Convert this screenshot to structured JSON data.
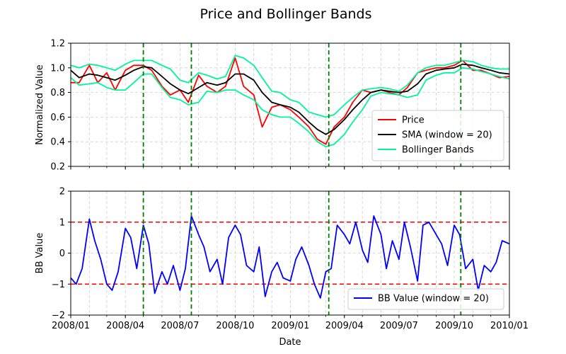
{
  "figure": {
    "title": "Price and Bollinger Bands"
  },
  "chart_data": [
    {
      "type": "line",
      "xlabel": "",
      "ylabel": "Normalized Value",
      "xlim": [
        "2008-01-01",
        "2010-01-01"
      ],
      "ylim": [
        0.2,
        1.2
      ],
      "yticks": [
        0.2,
        0.4,
        0.6,
        0.8,
        1.0,
        1.2
      ],
      "ytick_labels": [
        "0.2",
        "0.4",
        "0.6",
        "0.8",
        "1.0",
        "1.2"
      ],
      "grid": true,
      "legend_position": "lower-right",
      "vertical_markers": {
        "color": "#008000",
        "style": "dashed",
        "dates": [
          "2008-05-01",
          "2008-07-20",
          "2009-03-06",
          "2009-10-12"
        ]
      },
      "series": [
        {
          "name": "Price",
          "color": "#ff0000",
          "x": [
            "2008-01-01",
            "2008-01-15",
            "2008-02-01",
            "2008-02-15",
            "2008-03-01",
            "2008-03-15",
            "2008-04-01",
            "2008-04-15",
            "2008-05-01",
            "2008-05-15",
            "2008-06-01",
            "2008-06-15",
            "2008-07-01",
            "2008-07-15",
            "2008-08-01",
            "2008-08-15",
            "2008-09-01",
            "2008-09-15",
            "2008-10-01",
            "2008-10-15",
            "2008-11-01",
            "2008-11-15",
            "2008-12-01",
            "2008-12-15",
            "2009-01-01",
            "2009-01-15",
            "2009-02-01",
            "2009-02-15",
            "2009-03-01",
            "2009-03-15",
            "2009-04-01",
            "2009-04-15",
            "2009-05-01",
            "2009-05-15",
            "2009-06-01",
            "2009-06-15",
            "2009-07-01",
            "2009-07-15",
            "2009-08-01",
            "2009-08-15",
            "2009-09-01",
            "2009-09-15",
            "2009-10-01",
            "2009-10-15",
            "2009-11-01",
            "2009-11-15",
            "2009-12-01",
            "2009-12-15",
            "2010-01-01"
          ],
          "y": [
            0.88,
            0.88,
            1.02,
            0.88,
            0.96,
            0.82,
            0.98,
            1.02,
            1.02,
            0.98,
            0.85,
            0.78,
            0.82,
            0.72,
            0.94,
            0.85,
            0.8,
            0.85,
            1.08,
            0.85,
            0.78,
            0.52,
            0.68,
            0.7,
            0.66,
            0.6,
            0.52,
            0.42,
            0.38,
            0.52,
            0.6,
            0.72,
            0.82,
            0.8,
            0.82,
            0.8,
            0.78,
            0.84,
            0.96,
            0.98,
            1.0,
            1.0,
            1.02,
            1.06,
            0.98,
            0.98,
            0.95,
            0.92,
            0.93
          ]
        },
        {
          "name": "SMA (window = 20)",
          "color": "#000000",
          "x": [
            "2008-01-01",
            "2008-01-15",
            "2008-02-01",
            "2008-02-15",
            "2008-03-01",
            "2008-03-15",
            "2008-04-01",
            "2008-04-15",
            "2008-05-01",
            "2008-05-15",
            "2008-06-01",
            "2008-06-15",
            "2008-07-01",
            "2008-07-15",
            "2008-08-01",
            "2008-08-15",
            "2008-09-01",
            "2008-09-15",
            "2008-10-01",
            "2008-10-15",
            "2008-11-01",
            "2008-11-15",
            "2008-12-01",
            "2008-12-15",
            "2009-01-01",
            "2009-01-15",
            "2009-02-01",
            "2009-02-15",
            "2009-03-01",
            "2009-03-15",
            "2009-04-01",
            "2009-04-15",
            "2009-05-01",
            "2009-05-15",
            "2009-06-01",
            "2009-06-15",
            "2009-07-01",
            "2009-07-15",
            "2009-08-01",
            "2009-08-15",
            "2009-09-01",
            "2009-09-15",
            "2009-10-01",
            "2009-10-15",
            "2009-11-01",
            "2009-11-15",
            "2009-12-01",
            "2009-12-15",
            "2010-01-01"
          ],
          "y": [
            0.98,
            0.92,
            0.95,
            0.94,
            0.92,
            0.9,
            0.94,
            0.98,
            1.01,
            1.0,
            0.93,
            0.87,
            0.82,
            0.79,
            0.84,
            0.88,
            0.86,
            0.88,
            0.95,
            0.95,
            0.9,
            0.8,
            0.72,
            0.7,
            0.68,
            0.64,
            0.56,
            0.5,
            0.46,
            0.5,
            0.58,
            0.66,
            0.74,
            0.8,
            0.82,
            0.81,
            0.8,
            0.81,
            0.87,
            0.95,
            0.98,
            0.99,
            1.0,
            1.03,
            1.02,
            1.0,
            0.98,
            0.96,
            0.95
          ]
        },
        {
          "name": "Bollinger Bands",
          "color": "#00f59b",
          "x": [
            "2008-01-01",
            "2008-01-15",
            "2008-02-01",
            "2008-02-15",
            "2008-03-01",
            "2008-03-15",
            "2008-04-01",
            "2008-04-15",
            "2008-05-01",
            "2008-05-15",
            "2008-06-01",
            "2008-06-15",
            "2008-07-01",
            "2008-07-15",
            "2008-08-01",
            "2008-08-15",
            "2008-09-01",
            "2008-09-15",
            "2008-10-01",
            "2008-10-15",
            "2008-11-01",
            "2008-11-15",
            "2008-12-01",
            "2008-12-15",
            "2009-01-01",
            "2009-01-15",
            "2009-02-01",
            "2009-02-15",
            "2009-03-01",
            "2009-03-15",
            "2009-04-01",
            "2009-04-15",
            "2009-05-01",
            "2009-05-15",
            "2009-06-01",
            "2009-06-15",
            "2009-07-01",
            "2009-07-15",
            "2009-08-01",
            "2009-08-15",
            "2009-09-01",
            "2009-09-15",
            "2009-10-01",
            "2009-10-15",
            "2009-11-01",
            "2009-11-15",
            "2009-12-01",
            "2009-12-15",
            "2010-01-01"
          ],
          "y_upper": [
            1.02,
            1.0,
            1.03,
            1.02,
            1.0,
            0.98,
            1.03,
            1.06,
            1.06,
            1.06,
            1.02,
            0.99,
            0.9,
            0.88,
            0.96,
            0.94,
            0.91,
            0.93,
            1.1,
            1.08,
            1.02,
            0.92,
            0.81,
            0.8,
            0.74,
            0.72,
            0.64,
            0.62,
            0.6,
            0.62,
            0.7,
            0.76,
            0.82,
            0.83,
            0.84,
            0.83,
            0.81,
            0.86,
            0.96,
            1.0,
            1.02,
            1.02,
            1.04,
            1.06,
            1.05,
            1.02,
            1.0,
            0.99,
            0.99
          ],
          "y_lower": [
            0.92,
            0.86,
            0.87,
            0.88,
            0.84,
            0.82,
            0.82,
            0.88,
            0.95,
            0.95,
            0.84,
            0.76,
            0.74,
            0.7,
            0.72,
            0.81,
            0.8,
            0.82,
            0.82,
            0.78,
            0.74,
            0.66,
            0.62,
            0.6,
            0.6,
            0.55,
            0.48,
            0.4,
            0.36,
            0.38,
            0.46,
            0.56,
            0.66,
            0.77,
            0.8,
            0.79,
            0.78,
            0.76,
            0.78,
            0.9,
            0.94,
            0.96,
            0.96,
            1.0,
            0.99,
            0.97,
            0.95,
            0.93,
            0.91
          ]
        }
      ]
    },
    {
      "type": "line",
      "xlabel": "Date",
      "ylabel": "BB Value",
      "xlim": [
        "2008-01-01",
        "2010-01-01"
      ],
      "ylim": [
        -2,
        2
      ],
      "yticks": [
        -2,
        -1,
        0,
        1,
        2
      ],
      "ytick_labels": [
        "−2",
        "−1",
        "0",
        "1",
        "2"
      ],
      "xticks": [
        "2008-01-01",
        "2008-04-01",
        "2008-07-01",
        "2008-10-01",
        "2009-01-01",
        "2009-04-01",
        "2009-07-01",
        "2009-10-01",
        "2010-01-01"
      ],
      "xtick_labels": [
        "2008/01",
        "2008/04",
        "2008/07",
        "2008/10",
        "2009/01",
        "2009/04",
        "2009/07",
        "2009/10",
        "2010/01"
      ],
      "grid": true,
      "legend_position": "lower-right",
      "threshold_lines": {
        "color": "#ff0000",
        "style": "dashed",
        "values": [
          1,
          -1
        ]
      },
      "vertical_markers": {
        "color": "#008000",
        "style": "dashed",
        "dates": [
          "2008-05-01",
          "2008-07-20",
          "2009-03-06",
          "2009-10-12"
        ]
      },
      "series": [
        {
          "name": "BB Value (window = 20)",
          "color": "#0000ff",
          "x": [
            "2008-01-01",
            "2008-01-10",
            "2008-01-20",
            "2008-02-01",
            "2008-02-10",
            "2008-02-20",
            "2008-03-01",
            "2008-03-10",
            "2008-03-20",
            "2008-04-01",
            "2008-04-10",
            "2008-04-20",
            "2008-05-01",
            "2008-05-10",
            "2008-05-20",
            "2008-06-01",
            "2008-06-10",
            "2008-06-20",
            "2008-07-01",
            "2008-07-10",
            "2008-07-20",
            "2008-08-01",
            "2008-08-10",
            "2008-08-20",
            "2008-09-01",
            "2008-09-10",
            "2008-09-20",
            "2008-10-01",
            "2008-10-10",
            "2008-10-20",
            "2008-11-01",
            "2008-11-10",
            "2008-11-20",
            "2008-12-01",
            "2008-12-10",
            "2008-12-20",
            "2009-01-01",
            "2009-01-10",
            "2009-01-20",
            "2009-02-01",
            "2009-02-10",
            "2009-02-20",
            "2009-03-01",
            "2009-03-10",
            "2009-03-20",
            "2009-04-01",
            "2009-04-10",
            "2009-04-20",
            "2009-05-01",
            "2009-05-10",
            "2009-05-20",
            "2009-06-01",
            "2009-06-10",
            "2009-06-20",
            "2009-07-01",
            "2009-07-10",
            "2009-07-20",
            "2009-08-01",
            "2009-08-10",
            "2009-08-20",
            "2009-09-01",
            "2009-09-10",
            "2009-09-20",
            "2009-10-01",
            "2009-10-10",
            "2009-10-20",
            "2009-11-01",
            "2009-11-10",
            "2009-11-20",
            "2009-12-01",
            "2009-12-10",
            "2009-12-20",
            "2010-01-01"
          ],
          "y": [
            -0.8,
            -1.0,
            -0.5,
            1.1,
            0.4,
            -0.2,
            -1.0,
            -1.2,
            -0.6,
            0.8,
            0.5,
            -0.5,
            0.9,
            0.3,
            -1.3,
            -0.6,
            -1.0,
            -0.4,
            -1.2,
            -0.5,
            1.2,
            0.6,
            0.2,
            -0.6,
            -0.2,
            -1.0,
            0.5,
            0.9,
            0.6,
            -0.4,
            -0.6,
            0.2,
            -1.4,
            -0.6,
            -0.3,
            -0.8,
            -0.9,
            -0.2,
            0.2,
            -0.4,
            -1.0,
            -1.45,
            -0.6,
            -0.5,
            0.9,
            0.6,
            0.3,
            1.0,
            0.1,
            -0.3,
            1.2,
            0.6,
            -0.5,
            0.4,
            -0.2,
            1.0,
            0.2,
            -0.9,
            0.9,
            1.0,
            0.6,
            0.3,
            -0.4,
            0.9,
            0.6,
            -0.5,
            -0.2,
            -1.2,
            -0.4,
            -0.6,
            -0.3,
            0.4,
            0.3
          ]
        }
      ]
    }
  ]
}
